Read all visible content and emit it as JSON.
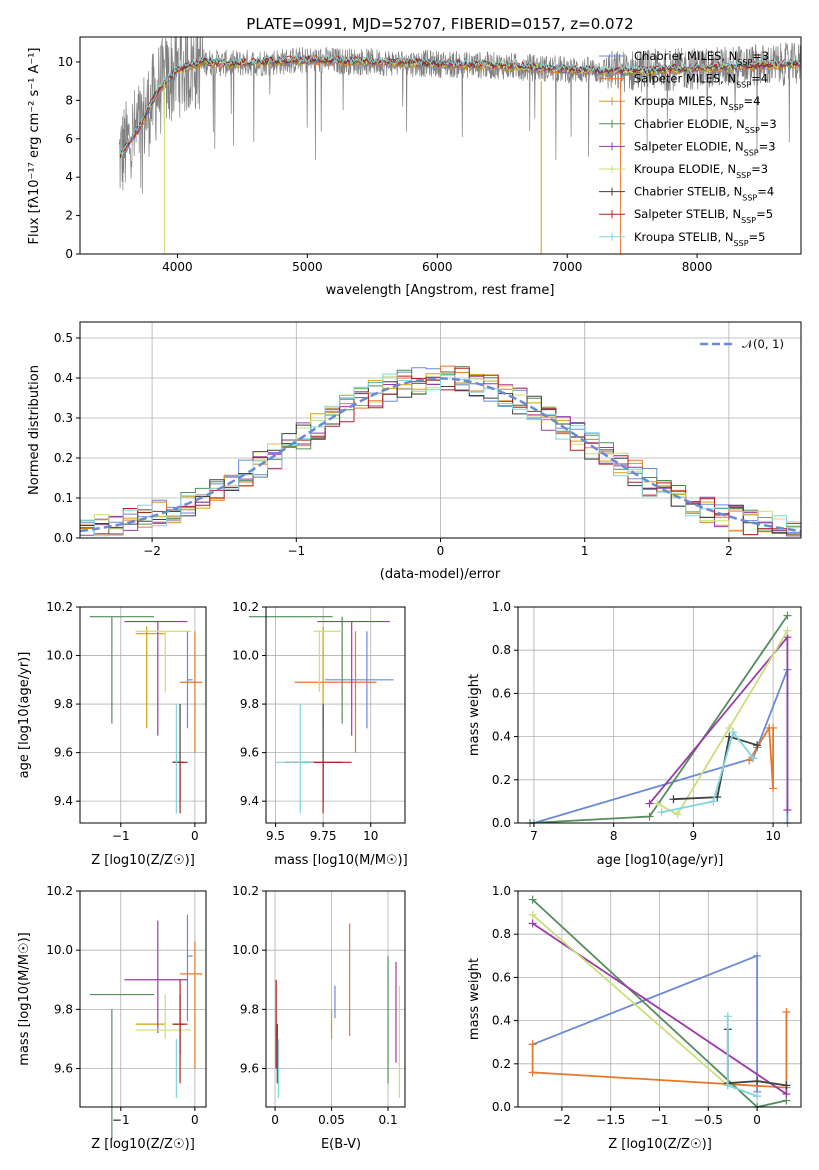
{
  "chart_data": [
    {
      "id": "spectrum",
      "type": "line",
      "title": "PLATE=0991, MJD=52707, FIBERID=0157, z=0.072",
      "xlabel": "wavelength [Angstrom, rest frame]",
      "ylabel": "Flux [fλ10⁻¹⁷ erg cm⁻² s⁻¹ A⁻¹]",
      "xlim": [
        3250,
        8800
      ],
      "ylim": [
        0,
        11.3
      ],
      "xticks": [
        4000,
        5000,
        6000,
        7000,
        8000
      ],
      "yticks": [
        0,
        2,
        4,
        6,
        8,
        10
      ],
      "legend_position": "top-right",
      "legend": [
        "Chabrier MILES, N_SSP=3",
        "Salpeter MILES, N_SSP=4",
        "Kroupa MILES, N_SSP=4",
        "Chabrier ELODIE, N_SSP=3",
        "Salpeter ELODIE, N_SSP=3",
        "Kroupa ELODIE, N_SSP=3",
        "Chabrier STELIB, N_SSP=4",
        "Salpeter STELIB, N_SSP=5",
        "Kroupa STELIB, N_SSP=5"
      ],
      "observed_trend": {
        "x": [
          3550,
          3700,
          3850,
          4000,
          4200,
          4400,
          4700,
          5000,
          5500,
          6000,
          6500,
          7000,
          7400,
          7800,
          8400,
          8800
        ],
        "y": [
          5.0,
          6.5,
          8.5,
          9.6,
          10.0,
          9.9,
          10.0,
          10.1,
          10.0,
          9.9,
          9.8,
          9.6,
          9.5,
          9.6,
          9.8,
          9.9
        ]
      }
    },
    {
      "id": "residuals",
      "type": "histogram",
      "xlabel": "(data-model)/error",
      "ylabel": "Normed distribution",
      "xlim": [
        -2.5,
        2.5
      ],
      "ylim": [
        0,
        0.54
      ],
      "xticks": [
        -2,
        -1,
        0,
        1,
        2
      ],
      "yticks": [
        0.0,
        0.1,
        0.2,
        0.3,
        0.4,
        0.5
      ],
      "grid": true,
      "legend_position": "top-right",
      "legend": [
        "𝒩(0, 1)"
      ],
      "model_curve": "gaussian mean 0 sigma 1"
    },
    {
      "id": "age-vs-Z",
      "type": "scatter",
      "xlabel": "Z [log10(Z/Z☉)]",
      "ylabel": "age  [log10(age/yr)]",
      "xlim": [
        -1.55,
        0.15
      ],
      "ylim": [
        9.31,
        10.2
      ],
      "xticks": [
        -1,
        0
      ],
      "yticks": [
        9.4,
        9.6,
        9.8,
        10.0,
        10.2
      ],
      "grid": true
    },
    {
      "id": "age-vs-mass",
      "type": "scatter",
      "xlabel": "mass [log10(M/M☉)]",
      "xlim": [
        9.45,
        10.18
      ],
      "ylim": [
        9.31,
        10.2
      ],
      "xticks": [
        9.5,
        9.75,
        10.0
      ],
      "yticks": [
        9.4,
        9.6,
        9.8,
        10.0,
        10.2
      ],
      "grid": true
    },
    {
      "id": "mass-weight-vs-age",
      "type": "line",
      "xlabel": "age  [log10(age/yr)]",
      "ylabel": "mass weight",
      "xlim": [
        6.8,
        10.35
      ],
      "ylim": [
        0,
        1
      ],
      "xticks": [
        7,
        8,
        9,
        10
      ],
      "yticks": [
        0.0,
        0.2,
        0.4,
        0.6,
        0.8,
        1.0
      ],
      "grid": true
    },
    {
      "id": "mass-vs-Z",
      "type": "scatter",
      "xlabel": "Z [log10(Z/Z☉)]",
      "ylabel": "mass [log10(M/M☉)]",
      "xlim": [
        -1.55,
        0.15
      ],
      "ylim": [
        9.47,
        10.2
      ],
      "xticks": [
        -1,
        0
      ],
      "yticks": [
        9.6,
        9.8,
        10.0,
        10.2
      ],
      "grid": true
    },
    {
      "id": "mass-vs-ebv",
      "type": "scatter",
      "xlabel": "E(B-V)",
      "xlim": [
        -0.008,
        0.115
      ],
      "ylim": [
        9.47,
        10.2
      ],
      "xticks": [
        0.0,
        0.05,
        0.1
      ],
      "yticks": [
        9.6,
        9.8,
        10.0,
        10.2
      ],
      "grid": true
    },
    {
      "id": "mass-weight-vs-Z",
      "type": "line",
      "xlabel": "Z [log10(Z/Z☉)]",
      "ylabel": "mass weight",
      "xlim": [
        -2.45,
        0.45
      ],
      "ylim": [
        0,
        1
      ],
      "xticks": [
        -2.0,
        -1.5,
        -1.0,
        -0.5,
        0.0
      ],
      "yticks": [
        0.0,
        0.2,
        0.4,
        0.6,
        0.8,
        1.0
      ],
      "grid": true
    }
  ],
  "models": [
    {
      "name": "Chabrier MILES",
      "color": "#6a8ad8",
      "Z": -0.1,
      "age": 9.9,
      "ebv": 0.053,
      "mass": 9.98,
      "Zerr": [
        -0.1,
        -0.03
      ],
      "ageErr": [
        9.7,
        10.1
      ],
      "massErr": [
        9.76,
        10.12
      ],
      "ebvMassErr": [
        9.77,
        9.88
      ],
      "mwAge": [
        [
          7.0,
          0.0
        ],
        [
          9.75,
          0.3
        ],
        [
          9.8,
          0.35
        ],
        [
          10.18,
          0.71
        ],
        [
          10.18,
          0.0
        ]
      ],
      "mwZ": [
        [
          -2.3,
          0.29
        ],
        [
          0.0,
          0.7
        ],
        [
          0.0,
          0.07
        ]
      ]
    },
    {
      "name": "Salpeter MILES",
      "color": "#e8772e",
      "Z": 0.0,
      "age": 9.89,
      "ebv": 0.066,
      "mass": 9.92,
      "Zerr": [
        -0.2,
        0.1
      ],
      "ageErr": [
        9.6,
        10.1
      ],
      "massErr": [
        9.6,
        10.03
      ],
      "ebvMassErr": [
        9.71,
        10.09
      ],
      "mwAge": [
        [
          9.7,
          0.29
        ],
        [
          9.95,
          0.44
        ],
        [
          10.0,
          0.16
        ],
        [
          10.0,
          0.44
        ]
      ],
      "mwZ": [
        [
          -2.3,
          0.29
        ],
        [
          -2.3,
          0.16
        ],
        [
          0.3,
          0.09
        ],
        [
          0.3,
          0.44
        ]
      ]
    },
    {
      "name": "Kroupa MILES",
      "color": "#d4a000",
      "Z": -0.65,
      "age": 10.09,
      "ebv": 0.05,
      "mass": 9.75,
      "Zerr": [
        -0.8,
        -0.4
      ],
      "ageErr": [
        9.7,
        10.12
      ],
      "massErr": [
        9.75,
        9.75
      ],
      "ebvMassErr": [
        9.7,
        9.8
      ],
      "mwAge": [],
      "mwZ": []
    },
    {
      "name": "Chabrier ELODIE",
      "color": "#558c5e",
      "Z": -1.12,
      "age": 10.16,
      "ebv": 0.1,
      "mass": 9.85,
      "Zerr": [
        -1.42,
        -0.55
      ],
      "ageErr": [
        9.72,
        10.16
      ],
      "massErr": [
        9.36,
        9.8
      ],
      "ebvMassErr": [
        9.55,
        9.98
      ],
      "mwAge": [
        [
          6.95,
          0.0
        ],
        [
          8.45,
          0.03
        ],
        [
          10.18,
          0.96
        ]
      ],
      "mwZ": [
        [
          -2.3,
          0.96
        ],
        [
          0.0,
          0.0
        ],
        [
          0.3,
          0.03
        ]
      ]
    },
    {
      "name": "Salpeter ELODIE",
      "color": "#9b3aa8",
      "Z": -0.5,
      "age": 10.14,
      "ebv": 0.107,
      "mass": 9.9,
      "Zerr": [
        -0.95,
        -0.1
      ],
      "ageErr": [
        9.67,
        10.14
      ],
      "massErr": [
        9.72,
        10.1
      ],
      "ebvMassErr": [
        9.62,
        9.96
      ],
      "mwAge": [
        [
          8.45,
          0.09
        ],
        [
          10.18,
          0.86
        ],
        [
          10.18,
          0.06
        ]
      ],
      "mwZ": [
        [
          -2.3,
          0.85
        ],
        [
          0.3,
          0.06
        ],
        [
          0.3,
          0.1
        ]
      ]
    },
    {
      "name": "Kroupa ELODIE",
      "color": "#c8e07a",
      "Z": -0.4,
      "age": 10.1,
      "ebv": 0.11,
      "mass": 9.73,
      "Zerr": [
        -0.8,
        -0.05
      ],
      "ageErr": [
        9.85,
        10.1
      ],
      "massErr": [
        9.7,
        9.85
      ],
      "ebvMassErr": [
        9.5,
        9.88
      ],
      "mwAge": [
        [
          8.55,
          0.09
        ],
        [
          8.8,
          0.04
        ],
        [
          9.45,
          0.44
        ],
        [
          10.18,
          0.89
        ]
      ],
      "mwZ": [
        [
          -2.3,
          0.89
        ],
        [
          -0.3,
          0.1
        ],
        [
          0.0,
          0.05
        ]
      ]
    },
    {
      "name": "Chabrier STELIB",
      "color": "#404040",
      "Z": -0.2,
      "age": 9.56,
      "ebv": 0.002,
      "mass": 9.75,
      "Zerr": [
        -0.3,
        -0.15
      ],
      "ageErr": [
        9.4,
        9.8
      ],
      "massErr": [
        9.65,
        9.85
      ],
      "ebvMassErr": [
        9.55,
        9.75
      ],
      "mwAge": [
        [
          8.75,
          0.11
        ],
        [
          9.3,
          0.12
        ],
        [
          9.45,
          0.4
        ],
        [
          9.8,
          0.36
        ]
      ],
      "mwZ": [
        [
          -0.3,
          0.36
        ],
        [
          -0.3,
          0.11
        ],
        [
          0.0,
          0.12
        ],
        [
          0.3,
          0.1
        ]
      ]
    },
    {
      "name": "Salpeter STELIB",
      "color": "#b22222",
      "Z": -0.2,
      "age": 9.56,
      "ebv": 0.001,
      "mass": 9.75,
      "Zerr": [
        -0.3,
        -0.1
      ],
      "ageErr": [
        9.35,
        9.56
      ],
      "massErr": [
        9.55,
        9.9
      ],
      "ebvMassErr": [
        9.6,
        9.9
      ],
      "mwAge": [],
      "mwZ": []
    },
    {
      "name": "Kroupa STELIB",
      "color": "#7fd6dc",
      "Z": -0.25,
      "age": 9.56,
      "ebv": 0.003,
      "mass": 9.63,
      "Zerr": [
        -0.25,
        -0.25
      ],
      "ageErr": [
        9.35,
        9.8
      ],
      "massErr": [
        9.5,
        9.7
      ],
      "ebvMassErr": [
        9.5,
        9.7
      ],
      "mwAge": [
        [
          8.6,
          0.05
        ],
        [
          9.25,
          0.1
        ],
        [
          9.5,
          0.42
        ],
        [
          9.75,
          0.3
        ]
      ],
      "mwZ": [
        [
          -0.3,
          0.42
        ],
        [
          -0.3,
          0.1
        ],
        [
          0.0,
          0.05
        ]
      ]
    }
  ]
}
